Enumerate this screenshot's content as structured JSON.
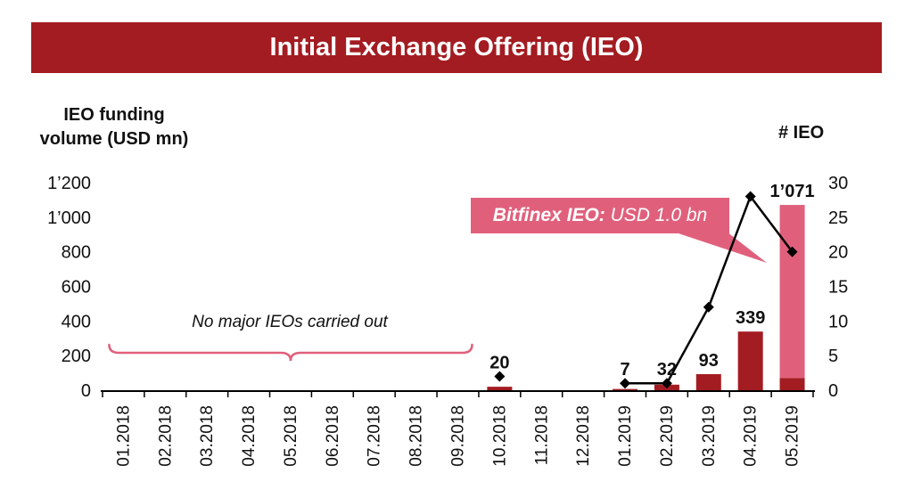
{
  "header": {
    "title": "Initial Exchange Offering (IEO)"
  },
  "axes": {
    "left_title_line1": "IEO funding",
    "left_title_line2": "volume (USD mn)",
    "right_title": "# IEO"
  },
  "annotation": {
    "text": "No major IEOs carried out"
  },
  "callout": {
    "bold": "Bitfinex IEO:",
    "rest": " USD 1.0 bn"
  },
  "theme": {
    "dark_red": "#a31c21",
    "pink": "#e0607c",
    "line_black": "#000000",
    "text": "#111111",
    "white": "#ffffff"
  },
  "chart_data": {
    "type": "combo",
    "title": "Initial Exchange Offering (IEO)",
    "left_axis": {
      "label": "IEO funding volume (USD mn)",
      "max": 1200,
      "ticks": [
        0,
        200,
        400,
        600,
        800,
        1000,
        1200
      ],
      "tick_labels": [
        "0",
        "200",
        "400",
        "600",
        "800",
        "1’000",
        "1’200"
      ]
    },
    "right_axis": {
      "label": "# IEO",
      "max": 30,
      "ticks": [
        0,
        5,
        10,
        15,
        20,
        25,
        30
      ],
      "tick_labels": [
        "0",
        "5",
        "10",
        "15",
        "20",
        "25",
        "30"
      ]
    },
    "categories": [
      "01.2018",
      "02.2018",
      "03.2018",
      "04.2018",
      "05.2018",
      "06.2018",
      "07.2018",
      "08.2018",
      "09.2018",
      "10.2018",
      "11.2018",
      "12.2018",
      "01.2019",
      "02.2019",
      "03.2019",
      "04.2019",
      "05.2019"
    ],
    "series": [
      {
        "name": "IEO funding volume (USD mn)",
        "type": "bar",
        "axis": "left",
        "color": "#a31c21",
        "values": [
          null,
          null,
          null,
          null,
          null,
          null,
          null,
          null,
          null,
          20,
          null,
          null,
          7,
          32,
          93,
          339,
          71
        ]
      },
      {
        "name": "Bitfinex IEO (USD 1.0 bn)",
        "type": "bar",
        "stack_on_previous": true,
        "axis": "left",
        "color": "#e0607c",
        "values": [
          null,
          null,
          null,
          null,
          null,
          null,
          null,
          null,
          null,
          null,
          null,
          null,
          null,
          null,
          null,
          null,
          1000
        ]
      },
      {
        "name": "# IEO",
        "type": "line",
        "axis": "right",
        "color": "#000000",
        "marker": "diamond",
        "values": [
          null,
          null,
          null,
          null,
          null,
          null,
          null,
          null,
          null,
          2,
          null,
          null,
          1,
          1,
          12,
          28,
          20
        ]
      }
    ],
    "bar_labels": [
      null,
      null,
      null,
      null,
      null,
      null,
      null,
      null,
      null,
      "20",
      null,
      null,
      "7",
      "32",
      "93",
      "339",
      "1’071"
    ],
    "annotation_span": [
      "01.2018",
      "09.2018"
    ],
    "grid": false,
    "legend": "none"
  }
}
